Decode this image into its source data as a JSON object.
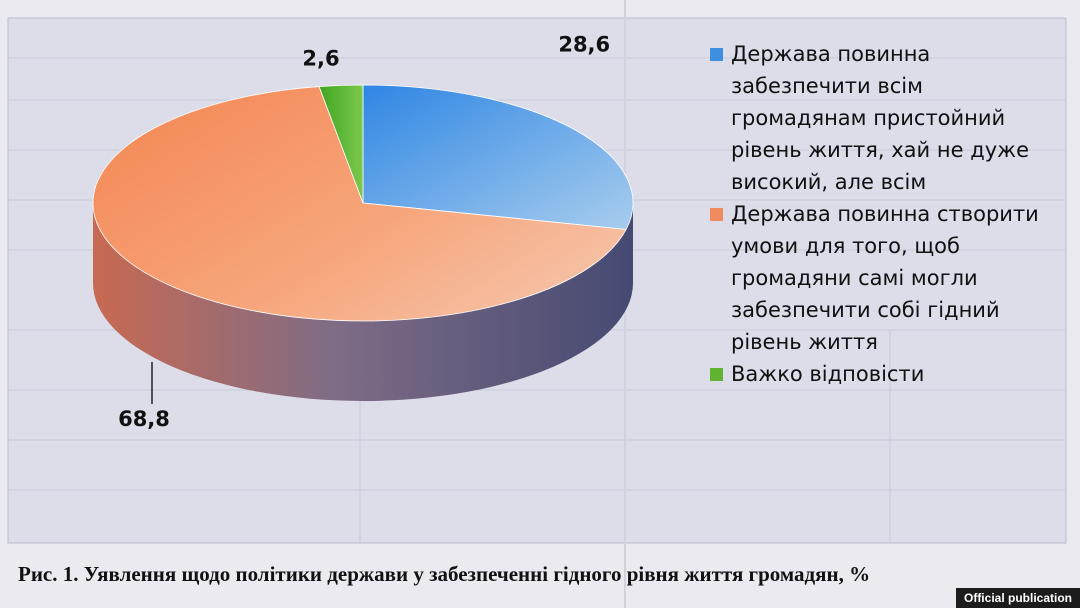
{
  "chart_data": {
    "type": "pie",
    "title": "",
    "slices": [
      {
        "label": "Держава повинна забезпечити всім громадянам пристойний рівень життя, хай не дуже високий, але всім",
        "value": 28.6,
        "value_label": "28,6",
        "color": "#3f8fe0"
      },
      {
        "label": "Держава повинна створити умови для того, щоб громадяни самі могли забезпечити собі гідний рівень життя",
        "value": 68.8,
        "value_label": "68,8",
        "color": "#f08a5f"
      },
      {
        "label": "Важко відповісти",
        "value": 2.6,
        "value_label": "2,6",
        "color": "#5fb32e"
      }
    ]
  },
  "caption": "Рис. 1. Уявлення щодо політики держави у забезпеченні гідного рівня життя громадян, %",
  "badge": "Official publication"
}
